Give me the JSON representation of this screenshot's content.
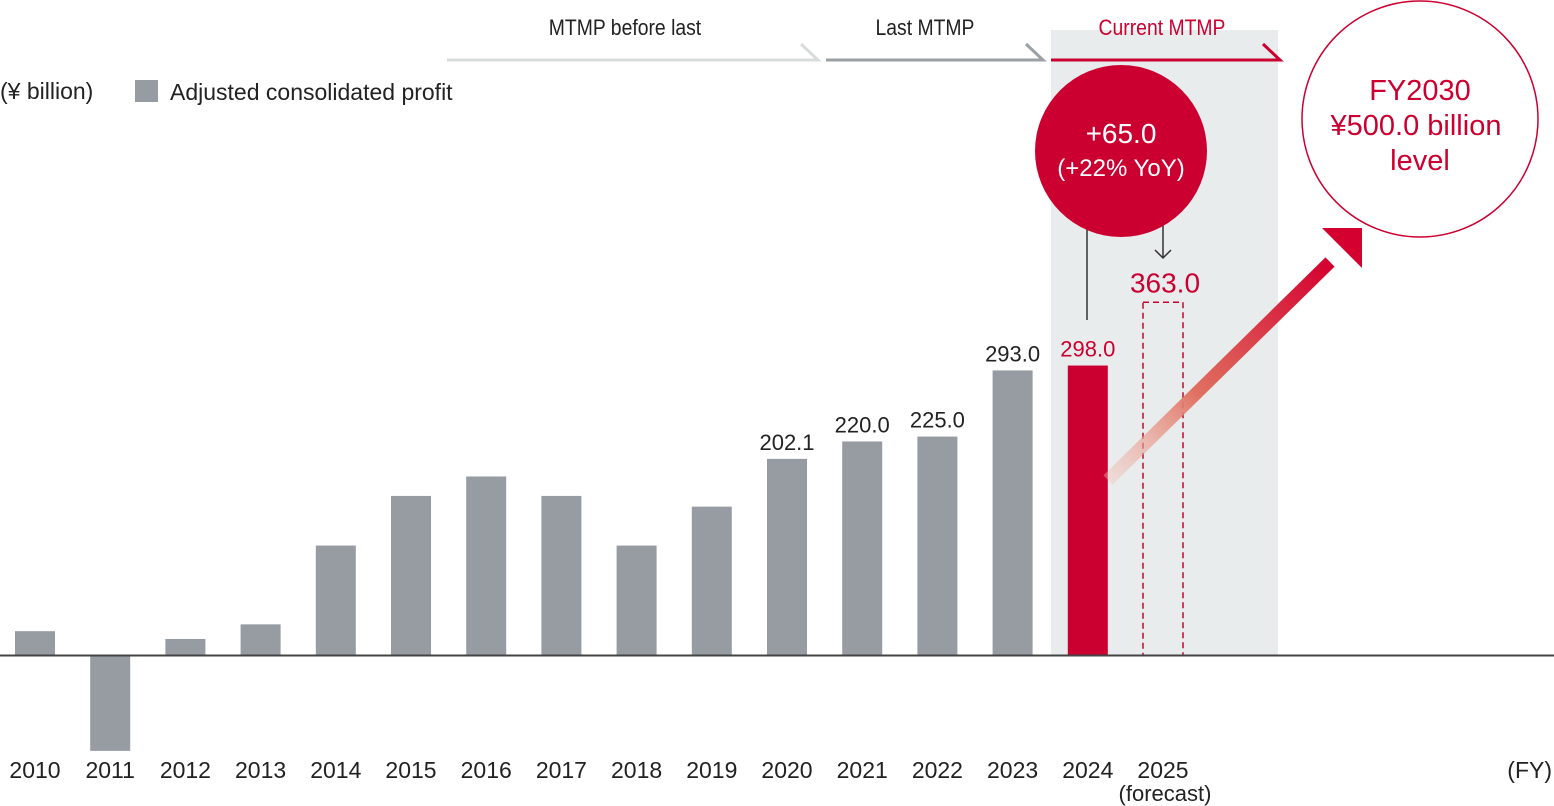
{
  "chart_data": {
    "type": "bar",
    "unit_label": "(¥ billion)",
    "legend": [
      {
        "name": "Adjusted consolidated profit",
        "color": "#969ca2"
      }
    ],
    "legend_placement": "top-left",
    "xlabel": "(FY)",
    "categories": [
      "2010",
      "2011",
      "2012",
      "2013",
      "2014",
      "2015",
      "2016",
      "2017",
      "2018",
      "2019",
      "2020",
      "2021",
      "2022",
      "2023",
      "2024",
      "2025"
    ],
    "forecast_note": "(forecast)",
    "values": [
      25,
      -98,
      17,
      32,
      113,
      164,
      184,
      164,
      113,
      153,
      202.1,
      220.0,
      225.0,
      293.0,
      298.0,
      363.0
    ],
    "data_labels": {
      "10": "202.1",
      "11": "220.0",
      "12": "225.0",
      "13": "293.0",
      "14": "298.0",
      "15": "363.0"
    },
    "ylim": [
      -100,
      380
    ],
    "grid": false,
    "colors": {
      "bar": "#969ca2",
      "highlight": "#cc0030",
      "shade": "#e8ecec",
      "axis": "#444444"
    },
    "periods": [
      {
        "label": "MTMP before last",
        "color": "#d8dcdc"
      },
      {
        "label": "Last MTMP",
        "color": "#9aa0a4"
      },
      {
        "label": "Current MTMP",
        "color": "#cc0030"
      }
    ],
    "annotations": {
      "increase": "+65.0",
      "increase_pct": "(+22% YoY)",
      "target_line1": "FY2030",
      "target_line2": "¥500.0 billion",
      "target_line3": "level"
    }
  }
}
